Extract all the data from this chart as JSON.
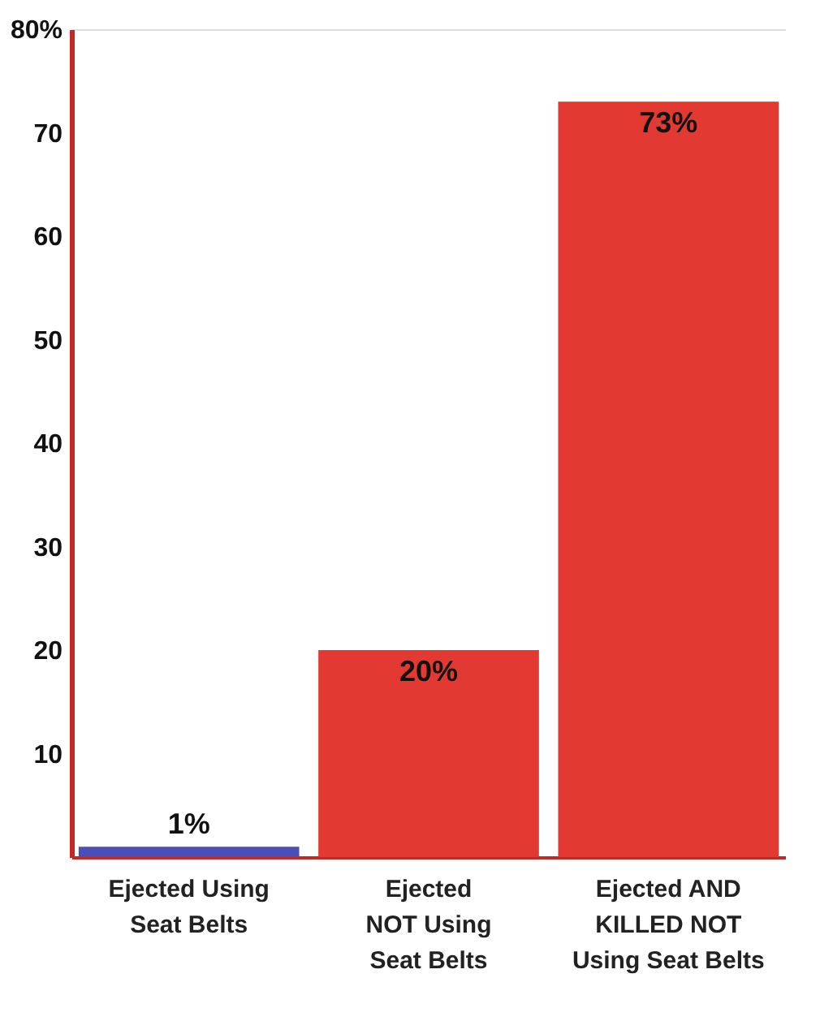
{
  "chart_data": {
    "type": "bar",
    "categories": [
      "Ejected Using\nSeat Belts",
      "Ejected\nNOT Using\nSeat Belts",
      "Ejected AND\nKILLED NOT\nUsing Seat Belts"
    ],
    "values": [
      1,
      20,
      73
    ],
    "colors": [
      "#4b4fb5",
      "#e23a33",
      "#e23a33"
    ],
    "value_labels": [
      "1%",
      "20%",
      "73%"
    ],
    "ylim": [
      0,
      80
    ],
    "yticks": [
      10,
      20,
      30,
      40,
      50,
      60,
      70,
      {
        "value": 80,
        "label": "80%"
      }
    ],
    "grid": false
  }
}
